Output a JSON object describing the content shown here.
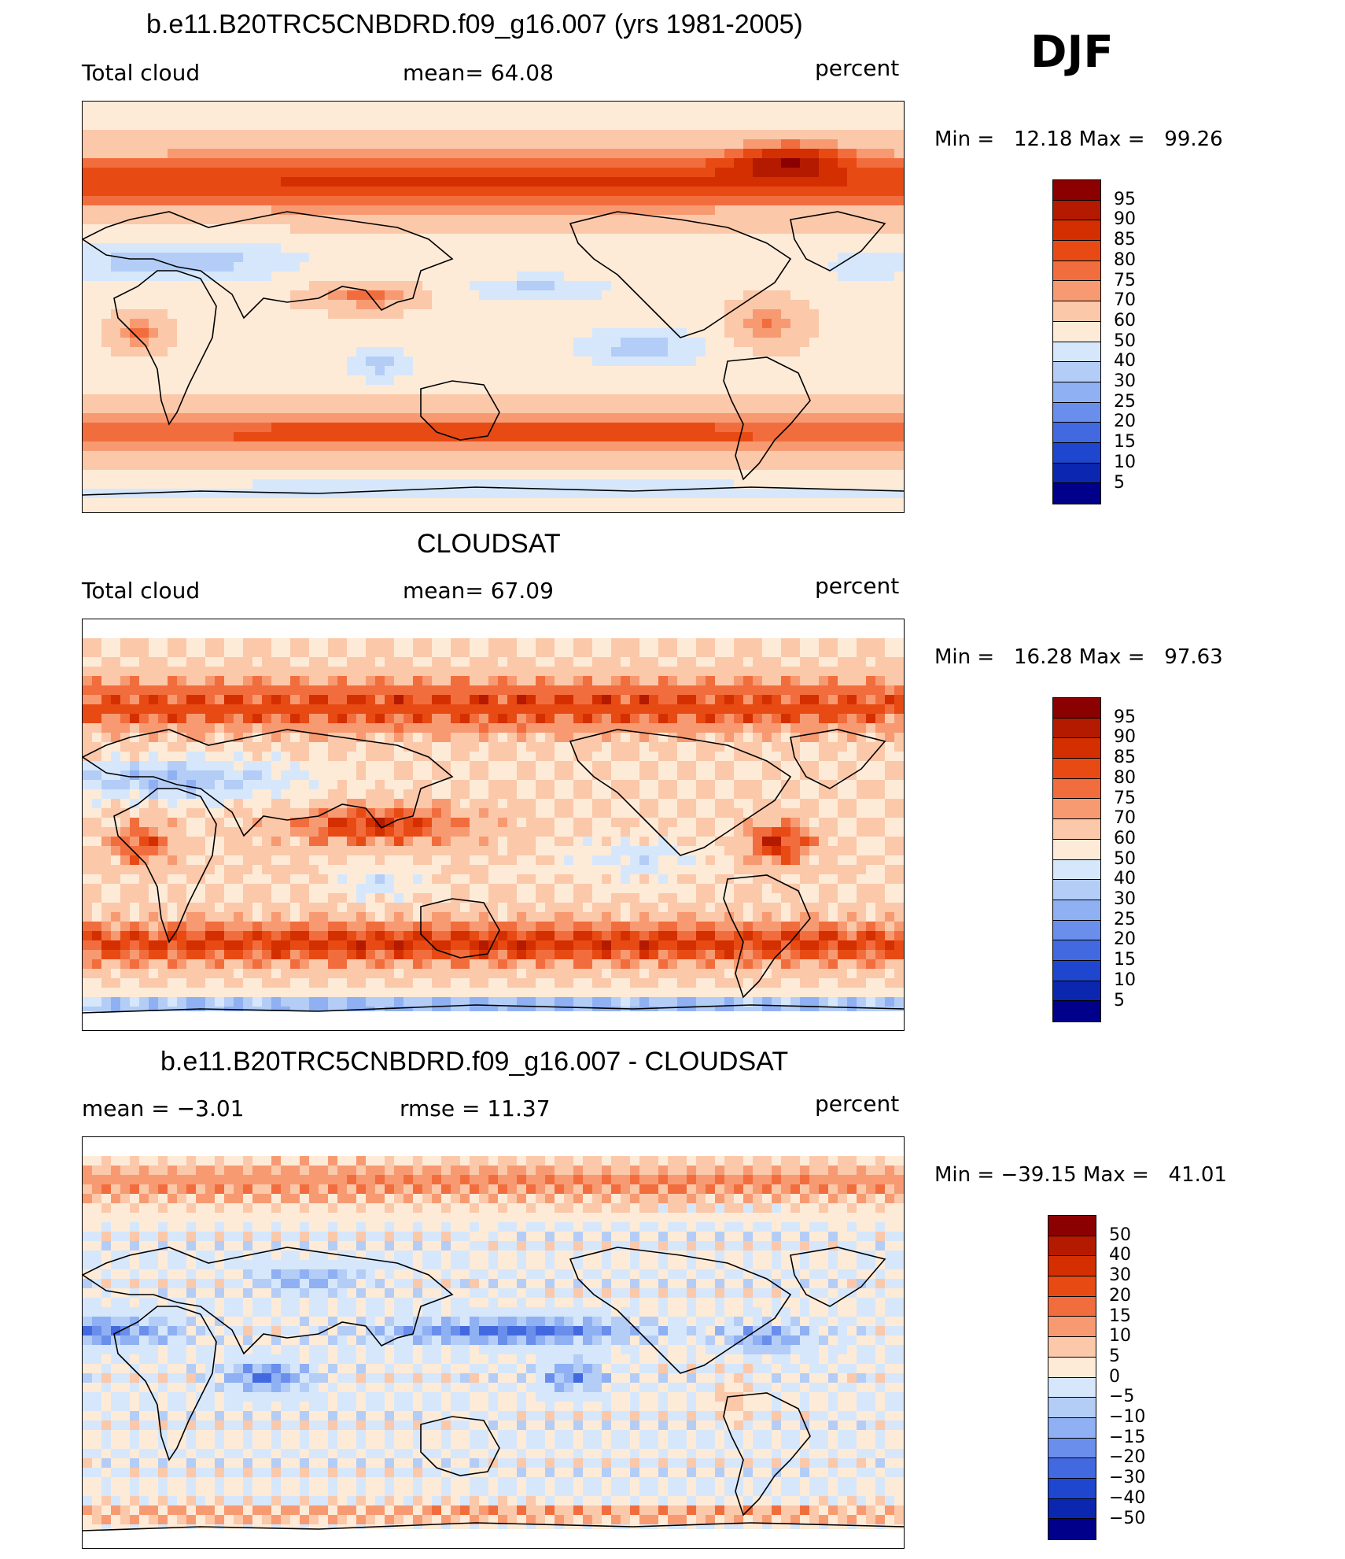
{
  "season": "DJF",
  "panels": [
    {
      "title": "b.e11.B20TRC5CNBDRD.f09_g16.007 (yrs 1981-2005)",
      "left_label": "Total cloud",
      "mid_label": "mean=   64.08",
      "right_label": "percent",
      "minmax": "Min =   12.18 Max =   99.26",
      "colorbar_labels": [
        "95",
        "90",
        "85",
        "80",
        "75",
        "70",
        "60",
        "50",
        "40",
        "30",
        "25",
        "20",
        "15",
        "10",
        "5"
      ],
      "field": "model"
    },
    {
      "title": "CLOUDSAT",
      "left_label": "Total cloud",
      "mid_label": "mean=   67.09",
      "right_label": "percent",
      "minmax": "Min =   16.28 Max =   97.63",
      "colorbar_labels": [
        "95",
        "90",
        "85",
        "80",
        "75",
        "70",
        "60",
        "50",
        "40",
        "30",
        "25",
        "20",
        "15",
        "10",
        "5"
      ],
      "field": "obs"
    },
    {
      "title": "b.e11.B20TRC5CNBDRD.f09_g16.007 - CLOUDSAT",
      "left_label": "mean =   −3.01",
      "mid_label": "rmse =   11.37",
      "right_label": "percent",
      "minmax": "Min = −39.15 Max =   41.01",
      "colorbar_labels": [
        "50",
        "40",
        "30",
        "20",
        "15",
        "10",
        "5",
        "0",
        "−5",
        "−10",
        "−15",
        "−20",
        "−30",
        "−40",
        "−50"
      ],
      "field": "diff"
    }
  ],
  "colors": {
    "levels": [
      "#8b0000",
      "#b31a00",
      "#d42f00",
      "#e84a14",
      "#f26d3d",
      "#f79a72",
      "#fbc8aa",
      "#fdebd8",
      "#d6e7fb",
      "#b3cdf7",
      "#8fb0f2",
      "#6a8eeb",
      "#4269e0",
      "#1f46cf",
      "#0b27b0",
      "#00008a"
    ]
  },
  "chart_data": [
    {
      "type": "heatmap",
      "title": "b.e11.B20TRC5CNBDRD.f09_g16.007 (yrs 1981-2005)",
      "variable": "Total cloud",
      "units": "percent",
      "mean": 64.08,
      "min": 12.18,
      "max": 99.26,
      "contour_levels": [
        5,
        10,
        15,
        20,
        25,
        30,
        40,
        50,
        60,
        70,
        75,
        80,
        85,
        90,
        95
      ]
    },
    {
      "type": "heatmap",
      "title": "CLOUDSAT",
      "variable": "Total cloud",
      "units": "percent",
      "mean": 67.09,
      "min": 16.28,
      "max": 97.63,
      "contour_levels": [
        5,
        10,
        15,
        20,
        25,
        30,
        40,
        50,
        60,
        70,
        75,
        80,
        85,
        90,
        95
      ]
    },
    {
      "type": "heatmap",
      "title": "b.e11.B20TRC5CNBDRD.f09_g16.007 - CLOUDSAT",
      "units": "percent",
      "mean": -3.01,
      "rmse": 11.37,
      "min": -39.15,
      "max": 41.01,
      "contour_levels": [
        -50,
        -40,
        -30,
        -20,
        -15,
        -10,
        -5,
        0,
        5,
        10,
        15,
        20,
        30,
        40,
        50
      ]
    }
  ]
}
